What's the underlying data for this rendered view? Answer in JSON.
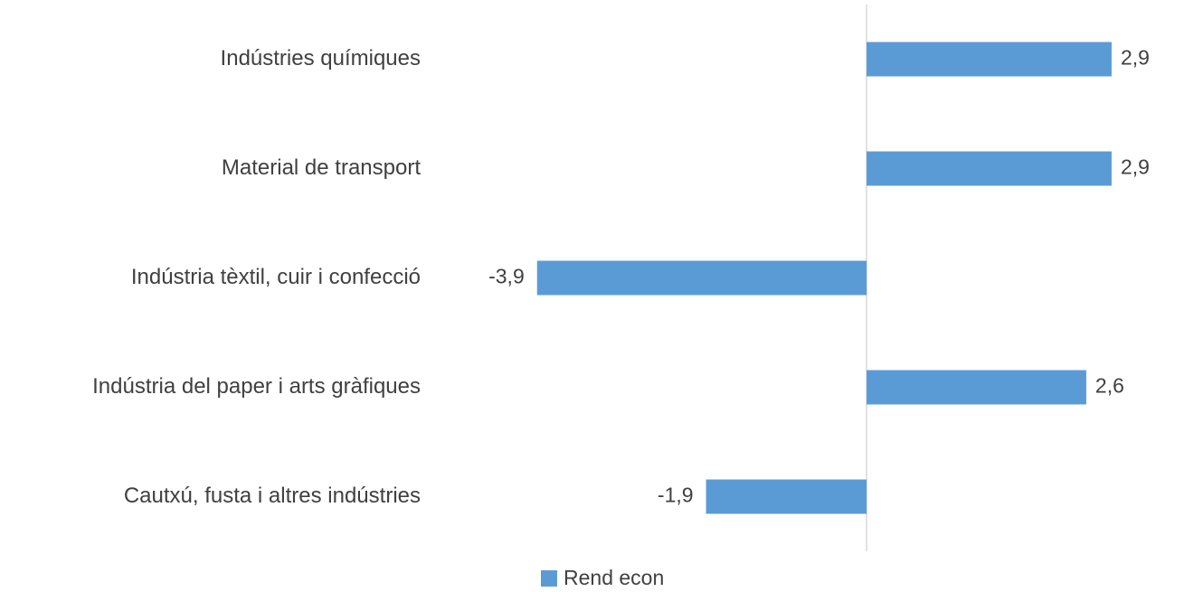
{
  "chart_data": {
    "type": "hbar",
    "categories": [
      "Indústries químiques",
      "Material de transport",
      "Indústria tèxtil, cuir i confecció",
      "Indústria del paper i arts gràfiques",
      "Cautxú, fusta i altres indústries"
    ],
    "series": [
      {
        "name": "Rend econ",
        "color": "#5b9bd5",
        "values": [
          2.9,
          2.9,
          -3.9,
          2.6,
          -1.9
        ],
        "value_labels": [
          "2,9",
          "2,9",
          "-3,9",
          "2,6",
          "-1,9"
        ]
      }
    ],
    "xlim": [
      -5,
      3.5
    ],
    "legend": "bottom"
  }
}
